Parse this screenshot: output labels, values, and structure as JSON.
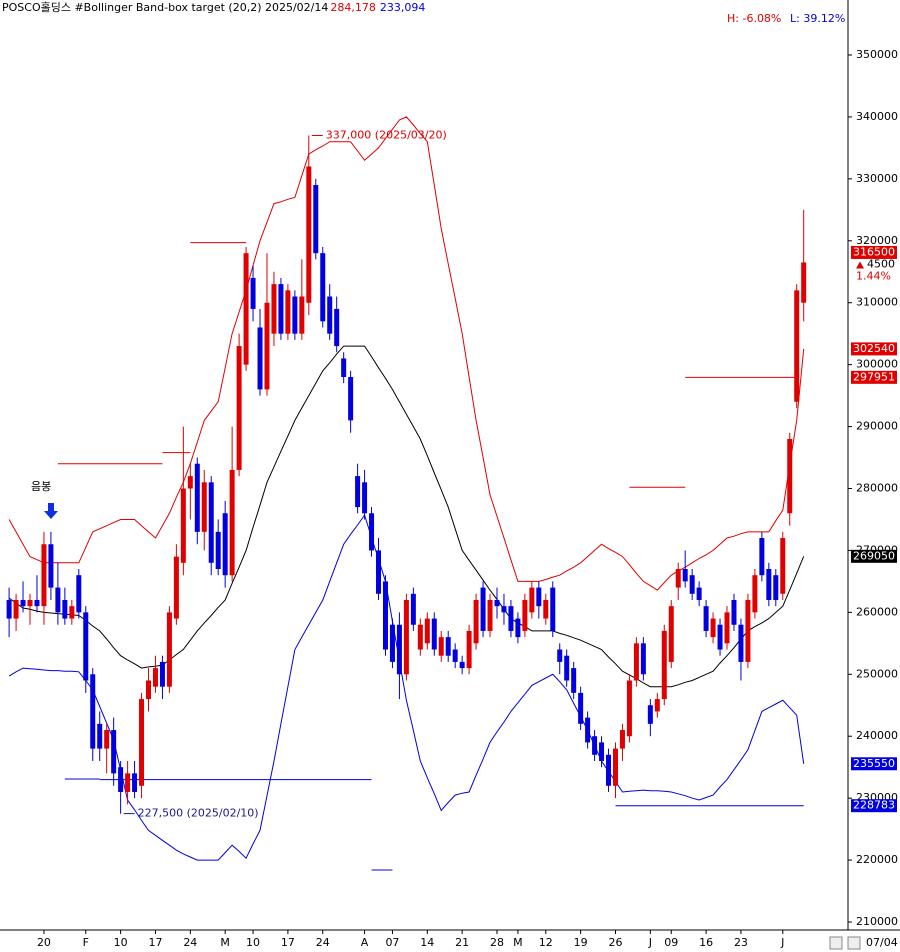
{
  "chart_data": {
    "type": "candlestick",
    "title": "POSCO홀딩스 #Bollinger Band-box target  (20,2) 2025/02/14",
    "header_high": "284,178",
    "header_low": "233,094",
    "high_pct": "H: -6.08%",
    "low_pct": "L: 39.12%",
    "signal_label": "음봉",
    "date_label": "07/04",
    "change": 4500,
    "change_pct": "1.44%",
    "up_color": "#e00000",
    "down_color": "#0000e0",
    "ylim": [
      208710,
      358880
    ],
    "yticks": [
      210000,
      220000,
      230000,
      240000,
      250000,
      260000,
      270000,
      280000,
      290000,
      300000,
      310000,
      320000,
      330000,
      340000,
      350000
    ],
    "categories": [
      null,
      null,
      null,
      null,
      null,
      "20",
      null,
      null,
      null,
      null,
      null,
      "F",
      null,
      null,
      null,
      null,
      "10",
      null,
      null,
      null,
      null,
      "17",
      null,
      null,
      null,
      null,
      "24",
      null,
      null,
      null,
      null,
      "M",
      null,
      null,
      null,
      "10",
      null,
      null,
      null,
      null,
      "17",
      null,
      null,
      null,
      null,
      "24",
      null,
      null,
      null,
      null,
      null,
      "A",
      null,
      null,
      null,
      "07",
      null,
      null,
      null,
      null,
      "14",
      null,
      null,
      null,
      null,
      "21",
      null,
      null,
      null,
      null,
      "28",
      null,
      null,
      "M",
      null,
      null,
      null,
      "12",
      null,
      null,
      null,
      null,
      "19",
      null,
      null,
      null,
      null,
      "26",
      null,
      null,
      null,
      null,
      "J",
      null,
      null,
      "09",
      null,
      null,
      null,
      null,
      "16",
      null,
      null,
      null,
      null,
      "23",
      null,
      null,
      null,
      null,
      null,
      "J",
      null,
      null,
      null
    ],
    "open": [
      262000,
      259000,
      262000,
      261000,
      262000,
      261000,
      271000,
      264000,
      262000,
      259000,
      266000,
      260000,
      250000,
      242000,
      238000,
      241000,
      235000,
      231000,
      234000,
      232000,
      246000,
      248000,
      252000,
      248000,
      259000,
      268000,
      280000,
      284000,
      273000,
      281000,
      273000,
      276000,
      266000,
      283000,
      300000,
      314000,
      306000,
      296000,
      305000,
      313000,
      305000,
      311000,
      305000,
      310000,
      329000,
      318000,
      311000,
      309000,
      301000,
      298000,
      282000,
      281000,
      276000,
      270000,
      265000,
      258000,
      258000,
      250000,
      263000,
      254000,
      255000,
      259000,
      253000,
      256000,
      254000,
      252000,
      251000,
      255000,
      264000,
      257000,
      262000,
      261000,
      261000,
      259000,
      257000,
      260000,
      264000,
      259000,
      264000,
      254000,
      253000,
      251000,
      247000,
      243000,
      240000,
      239000,
      237000,
      232000,
      238000,
      240000,
      249000,
      255000,
      245000,
      244000,
      246000,
      252000,
      264000,
      267000,
      266000,
      264000,
      261000,
      256000,
      258000,
      255000,
      262000,
      258000,
      252000,
      260000,
      272000,
      267000,
      266000,
      263000,
      276000,
      294000,
      310000
    ],
    "high": [
      264000,
      263000,
      265000,
      263000,
      266000,
      273000,
      273000,
      268000,
      264000,
      262000,
      267000,
      261000,
      251000,
      244000,
      242000,
      243000,
      236000,
      236000,
      236000,
      247000,
      251000,
      253000,
      253000,
      261000,
      271000,
      290000,
      284000,
      285000,
      283000,
      282000,
      275000,
      278000,
      290000,
      305000,
      319000,
      316000,
      309000,
      318000,
      315000,
      314000,
      313000,
      312000,
      317000,
      337000,
      330000,
      319000,
      313000,
      311000,
      302000,
      299000,
      284000,
      283000,
      277000,
      272000,
      266000,
      259000,
      260000,
      263000,
      264000,
      259000,
      260000,
      260000,
      257000,
      257000,
      255000,
      253000,
      258000,
      263000,
      265000,
      263000,
      264000,
      263000,
      262000,
      260000,
      263000,
      265000,
      265000,
      263000,
      265000,
      255000,
      254000,
      252000,
      248000,
      244000,
      241000,
      240000,
      238000,
      239000,
      242000,
      250000,
      256000,
      256000,
      246000,
      247000,
      258000,
      262000,
      268000,
      270000,
      267000,
      265000,
      262000,
      260000,
      259000,
      261000,
      263000,
      259000,
      263000,
      267000,
      273000,
      268000,
      267000,
      273000,
      289000,
      313000,
      325000
    ],
    "low": [
      256000,
      257000,
      260000,
      258000,
      260000,
      258000,
      262000,
      258000,
      258000,
      258000,
      259000,
      247000,
      236000,
      236000,
      234000,
      232000,
      227500,
      229000,
      230000,
      230000,
      244000,
      247000,
      246000,
      247000,
      258000,
      266000,
      275000,
      271000,
      270000,
      266000,
      266000,
      264000,
      265000,
      282000,
      299000,
      307000,
      295000,
      295000,
      303000,
      304000,
      304000,
      304000,
      304000,
      308000,
      317000,
      306000,
      304000,
      302000,
      297000,
      289000,
      276000,
      275000,
      269000,
      262000,
      253000,
      251000,
      246000,
      249000,
      257000,
      253000,
      254000,
      253000,
      252000,
      252000,
      251000,
      250000,
      250000,
      254000,
      256000,
      256000,
      259000,
      258000,
      256000,
      255000,
      256000,
      259000,
      259000,
      258000,
      256000,
      250000,
      248000,
      246000,
      241000,
      238000,
      236000,
      235000,
      231000,
      230000,
      236000,
      239000,
      248000,
      249000,
      240000,
      243000,
      245000,
      251000,
      262000,
      264000,
      262000,
      261000,
      256000,
      255000,
      253000,
      254000,
      257000,
      249000,
      251000,
      259000,
      265000,
      261000,
      261000,
      262000,
      274000,
      293000,
      307000
    ],
    "close": [
      259000,
      262000,
      261000,
      262000,
      261000,
      271000,
      264000,
      260000,
      259000,
      261000,
      260000,
      249000,
      238000,
      238000,
      241000,
      234000,
      231000,
      234000,
      231000,
      246000,
      249000,
      251000,
      248000,
      260000,
      269000,
      280000,
      282000,
      273000,
      281000,
      268000,
      267000,
      266000,
      283000,
      303000,
      318000,
      309000,
      296000,
      310000,
      313000,
      305000,
      312000,
      305000,
      311000,
      332000,
      318000,
      307000,
      305000,
      303000,
      298000,
      291000,
      277000,
      276000,
      270000,
      263000,
      254000,
      252000,
      250000,
      262000,
      258000,
      258000,
      259000,
      254000,
      256000,
      253000,
      252000,
      251000,
      257000,
      262000,
      257000,
      262000,
      261000,
      260000,
      257000,
      256000,
      262000,
      264000,
      261000,
      262000,
      257000,
      252000,
      249000,
      247000,
      242000,
      239000,
      237000,
      236000,
      232000,
      238000,
      241000,
      249000,
      255000,
      250000,
      242000,
      246000,
      257000,
      261000,
      267000,
      265000,
      263000,
      262000,
      257000,
      259000,
      254000,
      260000,
      258000,
      252000,
      262000,
      266000,
      266000,
      262000,
      262000,
      272000,
      288000,
      312000,
      316500
    ],
    "series": [
      {
        "color": "#e00000",
        "tag": true,
        "values": [
          275000,
          273000,
          271000,
          269000,
          268500,
          268000,
          268000,
          268000,
          268000,
          268000,
          268000,
          270500,
          273000,
          273500,
          274000,
          274500,
          275000,
          275000,
          275000,
          274000,
          273000,
          272000,
          274000,
          276000,
          278600,
          281000,
          284000,
          287500,
          291000,
          292500,
          294000,
          299500,
          305000,
          308500,
          312000,
          316000,
          320000,
          323000,
          326000,
          326300,
          326700,
          327000,
          330500,
          334000,
          334700,
          335300,
          336000,
          336000,
          336000,
          336000,
          334500,
          333000,
          334000,
          335000,
          336500,
          338000,
          339500,
          340000,
          338700,
          337300,
          336000,
          329000,
          322000,
          316300,
          310700,
          305000,
          298000,
          291000,
          285000,
          279000,
          275500,
          272000,
          268500,
          265000,
          265000,
          265000,
          265000,
          265300,
          265700,
          266000,
          266700,
          267300,
          268000,
          269000,
          270000,
          271000,
          270300,
          269700,
          269000,
          267700,
          266300,
          265000,
          264300,
          263600,
          264800,
          266000,
          266700,
          267300,
          268000,
          268700,
          269300,
          270000,
          271000,
          272000,
          272300,
          272700,
          273000,
          273000,
          273000,
          273000,
          274800,
          276500,
          283800,
          291000,
          302540
        ]
      },
      {
        "color": "#000000",
        "tag": true,
        "values": [
          262300,
          261500,
          260700,
          260500,
          260200,
          260000,
          259900,
          259800,
          259700,
          259600,
          259500,
          258700,
          257800,
          257000,
          255700,
          254300,
          253000,
          252300,
          251700,
          251000,
          251200,
          251300,
          251500,
          252300,
          253200,
          254000,
          255500,
          257000,
          258300,
          259500,
          260800,
          262000,
          264700,
          267300,
          270000,
          273700,
          277300,
          281000,
          283500,
          286000,
          288500,
          291000,
          293000,
          295000,
          297000,
          299000,
          300300,
          301700,
          303000,
          303000,
          303000,
          303000,
          301300,
          299500,
          297800,
          296000,
          294000,
          292000,
          290000,
          288000,
          285300,
          282500,
          279800,
          277000,
          273500,
          270000,
          268400,
          266800,
          265200,
          263600,
          262100,
          260500,
          259000,
          258300,
          257700,
          257000,
          257000,
          257000,
          257000,
          256600,
          256300,
          255900,
          255500,
          255000,
          254500,
          254000,
          252800,
          251700,
          250500,
          249900,
          249300,
          248600,
          248000,
          248000,
          248000,
          248000,
          248300,
          248700,
          249000,
          249500,
          250000,
          250500,
          251800,
          253000,
          254300,
          255700,
          257000,
          257700,
          258300,
          259000,
          260000,
          261000,
          263600,
          266300,
          269050
        ]
      },
      {
        "color": "#0000e0",
        "tag": true,
        "values": [
          249700,
          250400,
          251000,
          250900,
          250800,
          250700,
          250600,
          250600,
          250500,
          250500,
          250400,
          249000,
          247500,
          244800,
          242100,
          239400,
          234600,
          229700,
          228100,
          226400,
          224800,
          224000,
          223200,
          222400,
          221600,
          221000,
          220500,
          220000,
          220000,
          220000,
          220000,
          221200,
          222400,
          221400,
          220300,
          222600,
          224800,
          230400,
          236000,
          242000,
          248000,
          254000,
          256000,
          258000,
          260000,
          262000,
          265000,
          268000,
          271000,
          272600,
          274100,
          275700,
          272100,
          268600,
          265000,
          258600,
          252200,
          245800,
          240900,
          236000,
          233300,
          230700,
          228000,
          229300,
          230500,
          230800,
          231000,
          233700,
          236300,
          239000,
          240700,
          242300,
          244000,
          245400,
          246800,
          248200,
          248800,
          249400,
          250000,
          248800,
          247500,
          245300,
          243200,
          241000,
          238500,
          236000,
          234300,
          232700,
          231000,
          231100,
          231200,
          231300,
          231200,
          231200,
          231100,
          231000,
          230700,
          230400,
          230000,
          229700,
          230100,
          230500,
          231800,
          233000,
          234600,
          236200,
          237800,
          240900,
          244000,
          244600,
          245200,
          245800,
          244600,
          243400,
          235550
        ]
      }
    ],
    "target_lines": [
      {
        "value": 319700,
        "color": "#e00000",
        "start": 26,
        "end": 34
      },
      {
        "value": 284000,
        "color": "#e00000",
        "start": 7,
        "end": 22
      },
      {
        "value": 285800,
        "color": "#e00000",
        "start": 22,
        "end": 26
      },
      {
        "value": 297951,
        "color": "#e00000",
        "start": 97,
        "end": 113,
        "tag": true
      },
      {
        "value": 280200,
        "color": "#e00000",
        "start": 89,
        "end": 97
      },
      {
        "value": 233100,
        "color": "#0000e0",
        "start": 8,
        "end": 13
      },
      {
        "value": 233000,
        "color": "#0000e0",
        "start": 13,
        "end": 52
      },
      {
        "value": 218400,
        "color": "#0000e0",
        "start": 52,
        "end": 55
      },
      {
        "value": 228783,
        "color": "#0000e0",
        "start": 87,
        "end": 114,
        "tag": true
      }
    ],
    "annotations": [
      {
        "value": 337000,
        "label": "337,000 (2025/03/20)",
        "color": "#e00000",
        "of": "high"
      },
      {
        "value": 227500,
        "label": "227,500 (2025/02/10)",
        "color": "#1a1a8c",
        "of": "low"
      }
    ]
  }
}
